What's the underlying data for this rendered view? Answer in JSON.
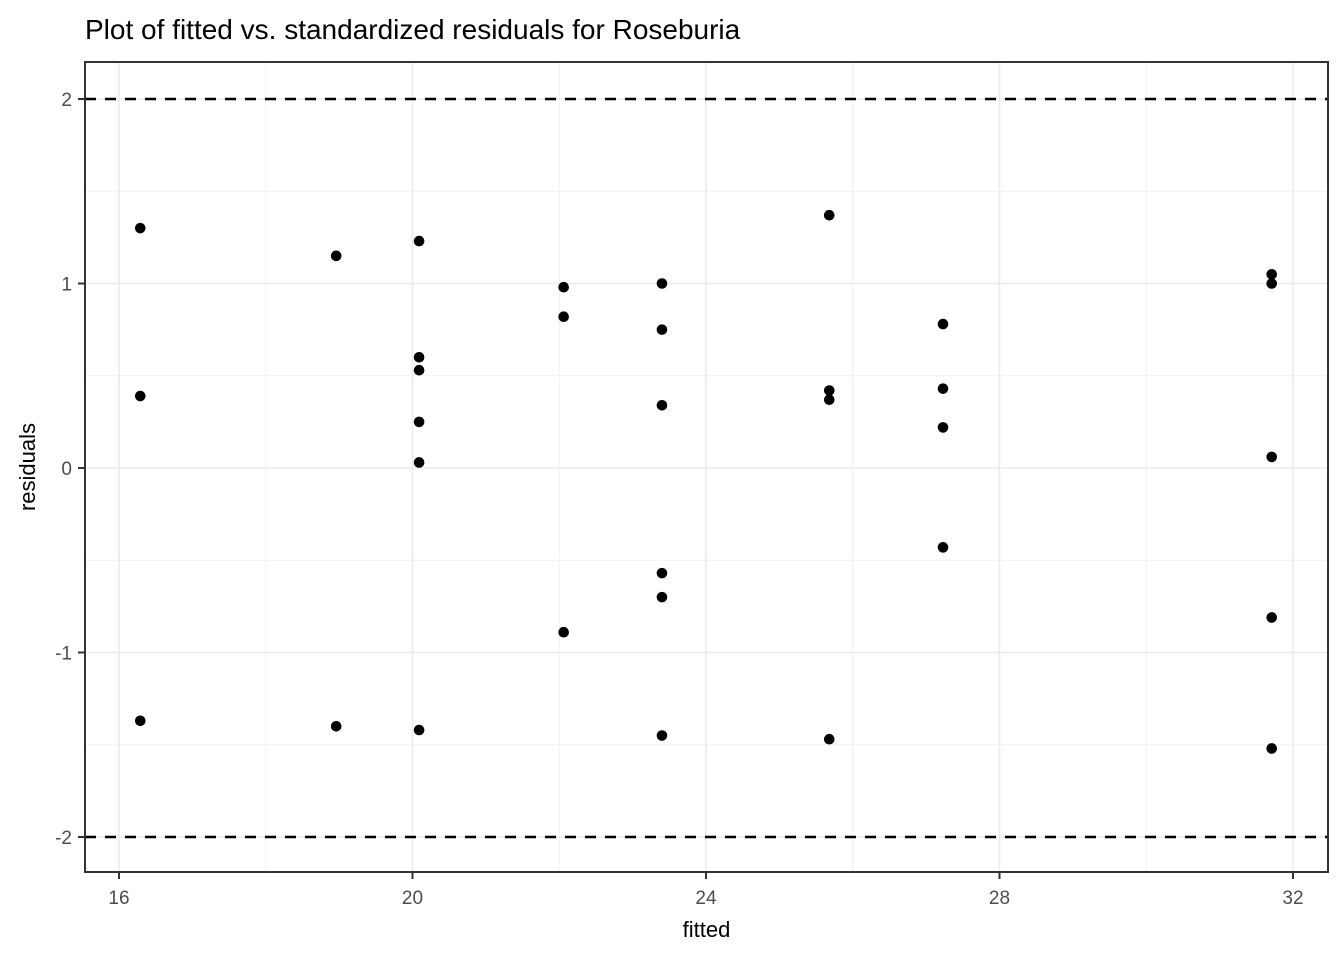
{
  "chart_data": {
    "type": "scatter",
    "title": "Plot of fitted vs. standardized residuals for Roseburia",
    "xlabel": "fitted",
    "ylabel": "residuals",
    "x_ticks": [
      16,
      20,
      24,
      28,
      32
    ],
    "y_ticks": [
      -2,
      -1,
      0,
      1,
      2
    ],
    "x_minor_ticks": [
      18,
      22,
      26,
      30
    ],
    "y_minor_ticks": [
      -1.5,
      -0.5,
      0.5,
      1.5
    ],
    "xlim": [
      15.54,
      32.48
    ],
    "ylim": [
      -2.19,
      2.2
    ],
    "grid": "on",
    "legend": "none",
    "reference_lines": [
      {
        "y": 2,
        "style": "dashed",
        "color": "#000000"
      },
      {
        "y": -2,
        "style": "dashed",
        "color": "#000000"
      }
    ],
    "points": [
      {
        "x": 16.29,
        "y": 1.3
      },
      {
        "x": 16.29,
        "y": 0.39
      },
      {
        "x": 16.29,
        "y": -1.37
      },
      {
        "x": 18.96,
        "y": 1.15
      },
      {
        "x": 18.96,
        "y": -1.4
      },
      {
        "x": 20.09,
        "y": 1.23
      },
      {
        "x": 20.09,
        "y": 0.6
      },
      {
        "x": 20.09,
        "y": 0.53
      },
      {
        "x": 20.09,
        "y": 0.25
      },
      {
        "x": 20.09,
        "y": 0.03
      },
      {
        "x": 20.09,
        "y": -1.42
      },
      {
        "x": 22.06,
        "y": 0.98
      },
      {
        "x": 22.06,
        "y": 0.82
      },
      {
        "x": 22.06,
        "y": -0.89
      },
      {
        "x": 23.4,
        "y": 1.0
      },
      {
        "x": 23.4,
        "y": 0.75
      },
      {
        "x": 23.4,
        "y": 0.34
      },
      {
        "x": 23.4,
        "y": -0.57
      },
      {
        "x": 23.4,
        "y": -0.7
      },
      {
        "x": 23.4,
        "y": -1.45
      },
      {
        "x": 25.68,
        "y": 1.37
      },
      {
        "x": 25.68,
        "y": 0.42
      },
      {
        "x": 25.68,
        "y": 0.37
      },
      {
        "x": 25.68,
        "y": -1.47
      },
      {
        "x": 27.23,
        "y": 0.78
      },
      {
        "x": 27.23,
        "y": 0.43
      },
      {
        "x": 27.23,
        "y": 0.22
      },
      {
        "x": 27.23,
        "y": -0.43
      },
      {
        "x": 31.71,
        "y": 1.05
      },
      {
        "x": 31.71,
        "y": 1.0
      },
      {
        "x": 31.71,
        "y": 0.06
      },
      {
        "x": 31.71,
        "y": -0.81
      },
      {
        "x": 31.71,
        "y": -1.52
      }
    ],
    "colors": {
      "point": "#000000",
      "grid_major": "#ebebeb",
      "grid_minor": "#f2f2f2",
      "panel_border": "#333333",
      "tick_mark": "#333333",
      "tick_label": "#4d4d4d",
      "reference_line": "#000000",
      "background": "#ffffff"
    }
  }
}
